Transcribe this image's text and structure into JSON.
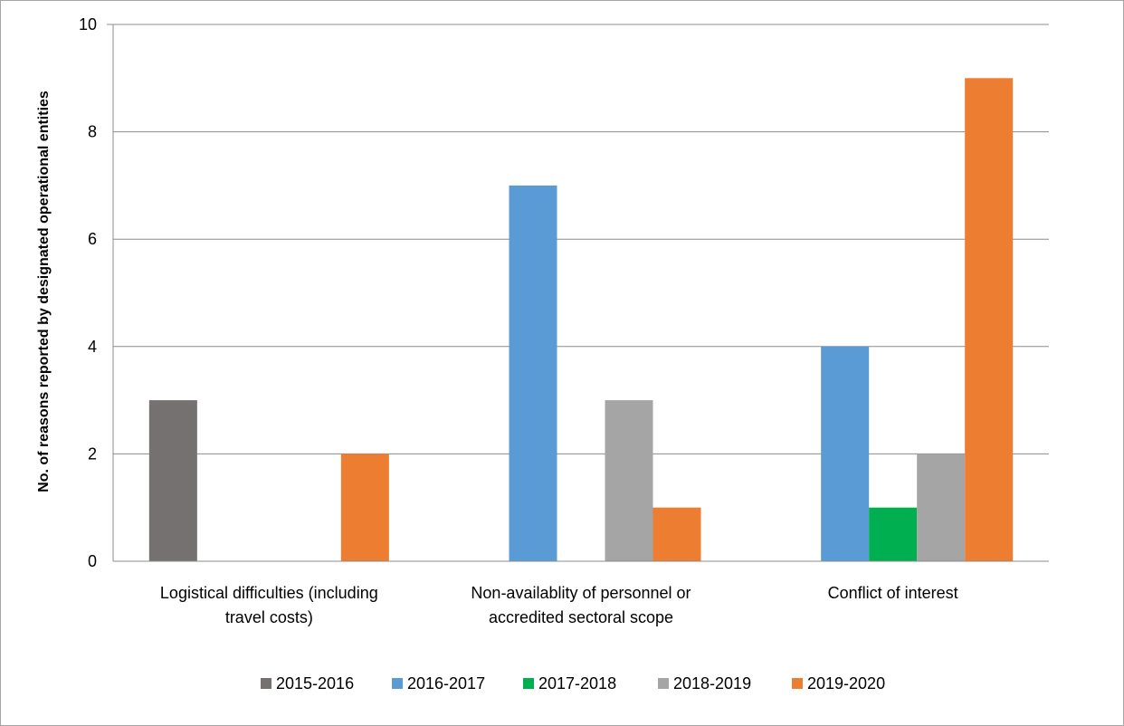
{
  "chart_data": {
    "type": "bar",
    "title": "",
    "xlabel": "",
    "ylabel": "No. of reasons reported by designated operational entities",
    "ylim": [
      0,
      10
    ],
    "yticks": [
      0,
      2,
      4,
      6,
      8,
      10
    ],
    "grid": true,
    "legend_position": "bottom",
    "categories": [
      [
        "Logistical difficulties (including",
        "travel costs)"
      ],
      [
        "Non-availablity of personnel or",
        "accredited sectoral scope"
      ],
      [
        "Conflict of interest"
      ]
    ],
    "series": [
      {
        "name": "2015-2016",
        "color": "#767171",
        "values": [
          3,
          0,
          0
        ]
      },
      {
        "name": "2016-2017",
        "color": "#5b9bd5",
        "values": [
          0,
          7,
          4
        ]
      },
      {
        "name": "2017-2018",
        "color": "#00b050",
        "values": [
          0,
          0,
          1
        ]
      },
      {
        "name": "2018-2019",
        "color": "#a5a5a5",
        "values": [
          0,
          3,
          2
        ]
      },
      {
        "name": "2019-2020",
        "color": "#ed7d31",
        "values": [
          2,
          1,
          9
        ]
      }
    ]
  }
}
